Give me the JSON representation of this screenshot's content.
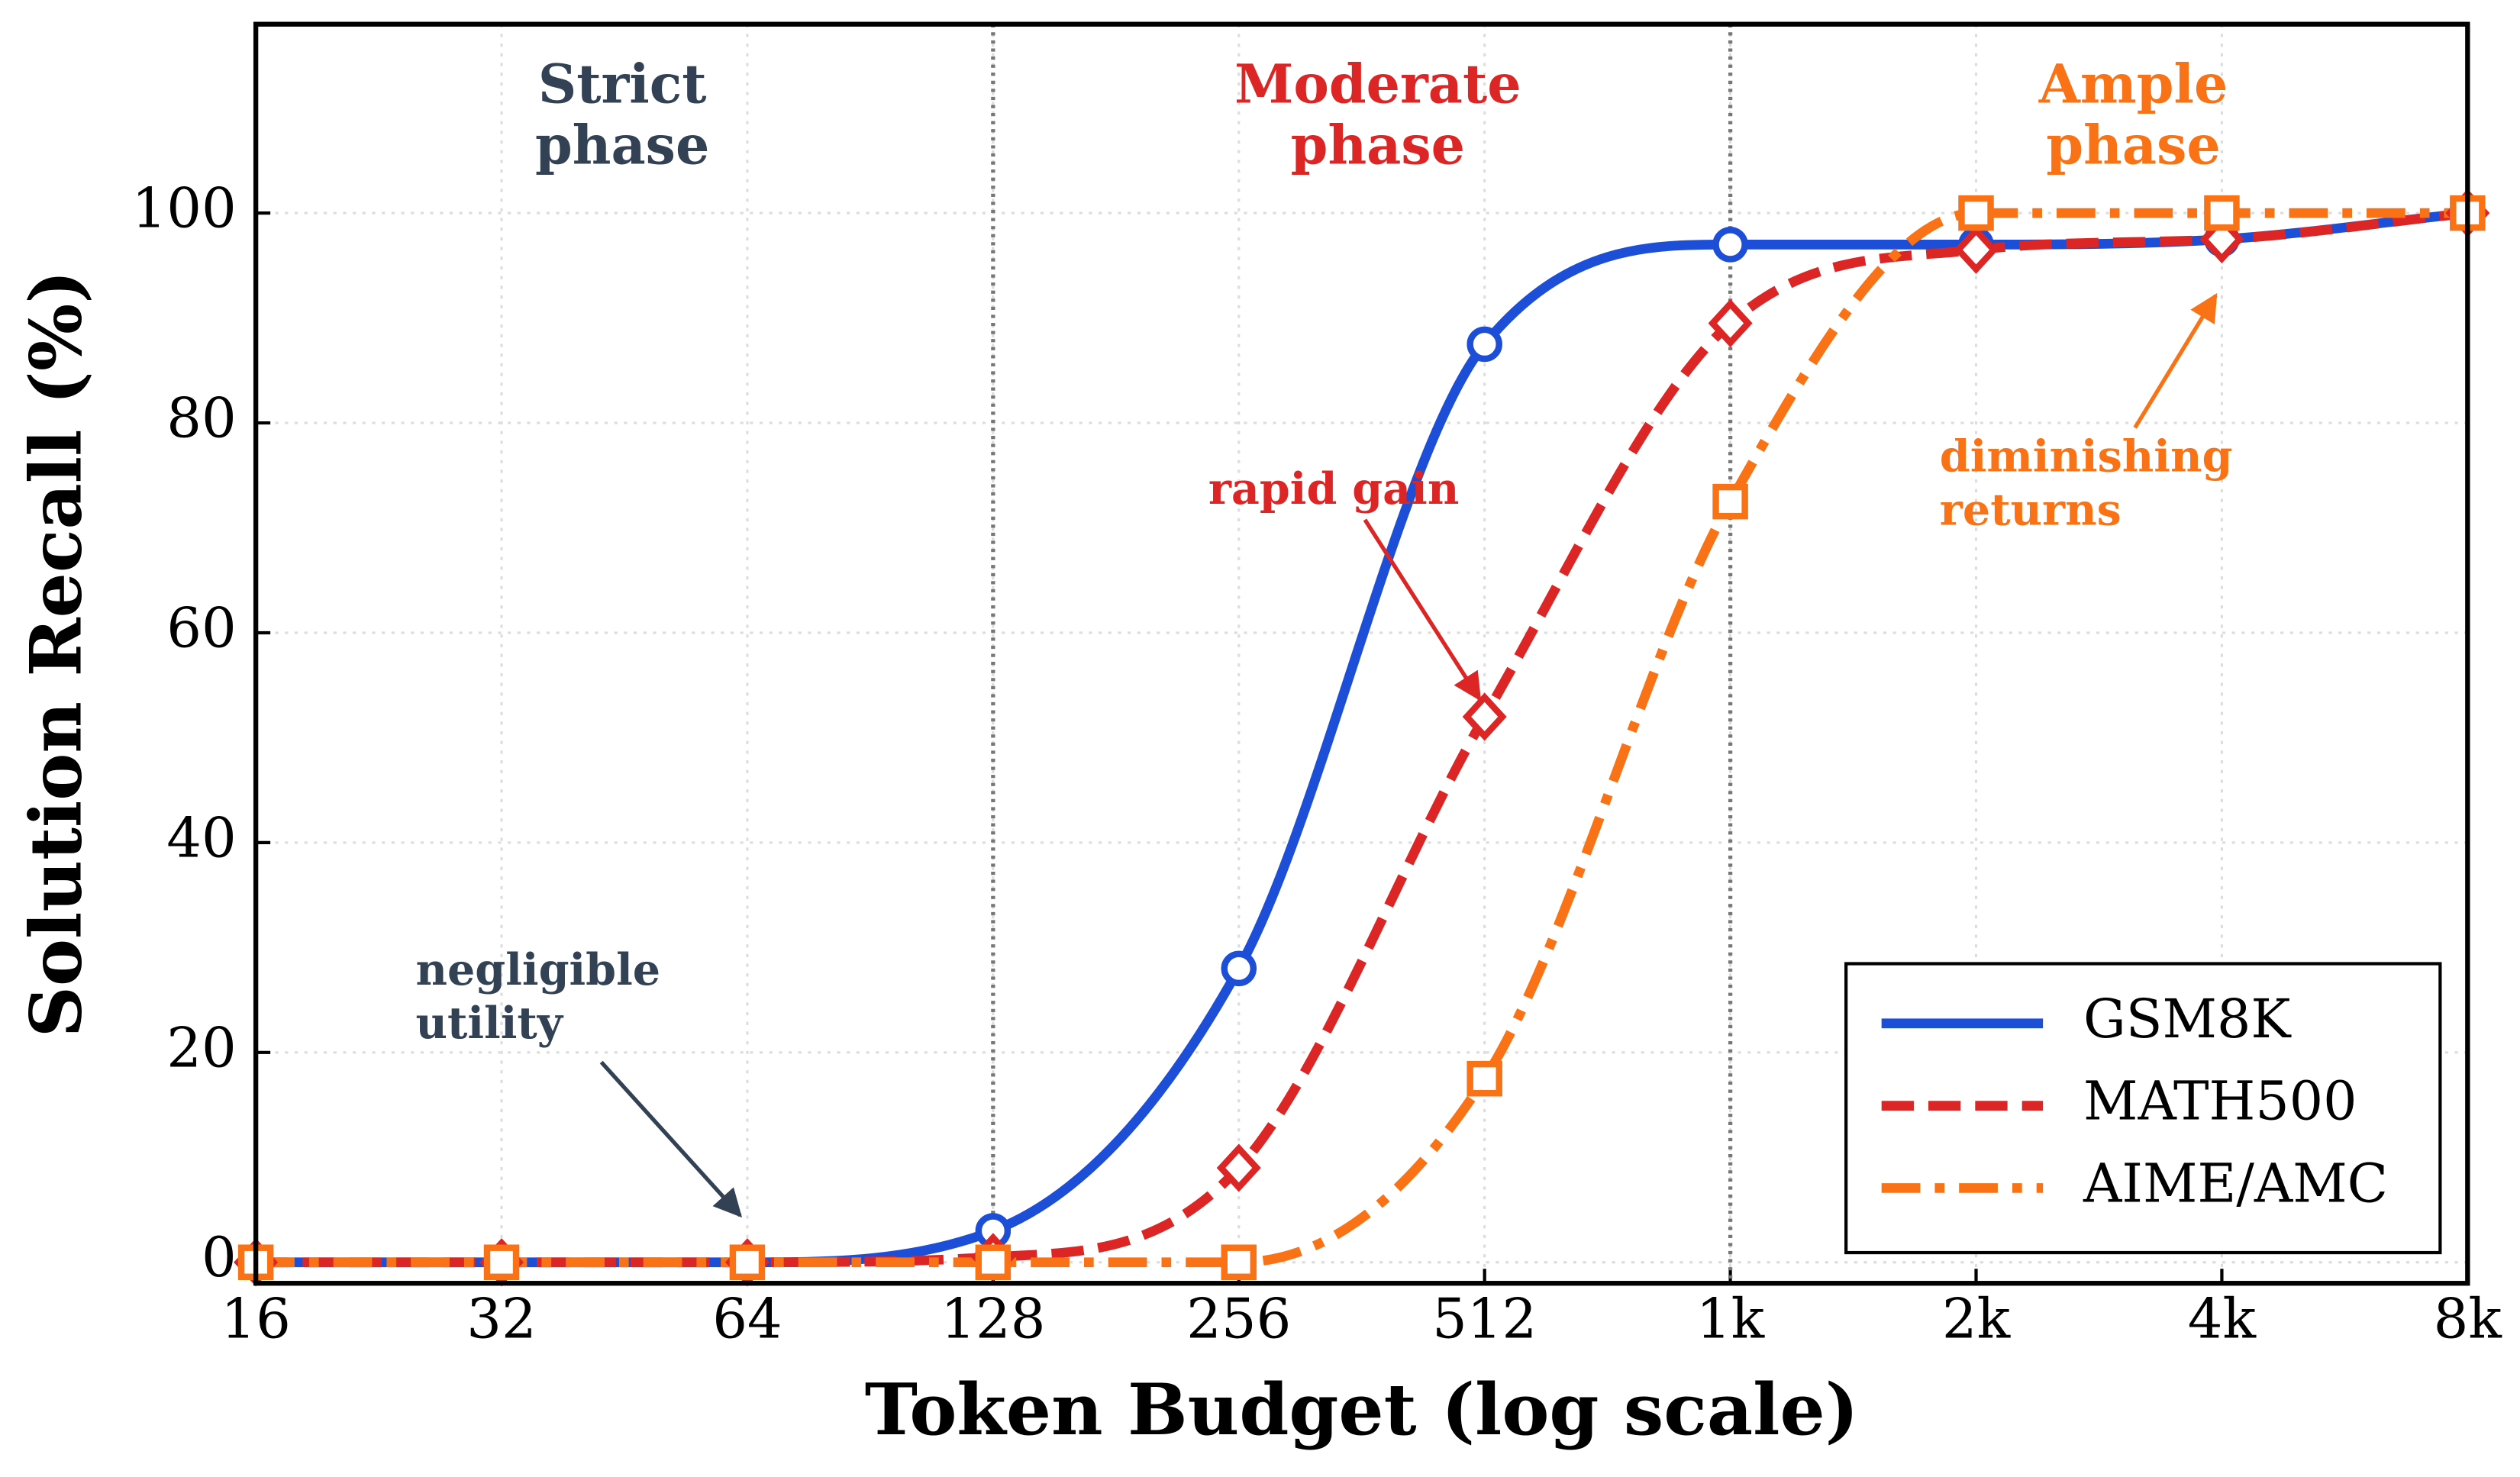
{
  "chart_data": {
    "type": "line",
    "xlabel": "Token Budget (log scale)",
    "ylabel": "Solution Recall (%)",
    "x": [
      16,
      32,
      64,
      128,
      256,
      512,
      1024,
      2048,
      4096,
      8192
    ],
    "xscale": "log",
    "xlim": [
      16,
      8192
    ],
    "xticks": [
      16,
      32,
      64,
      128,
      256,
      512,
      {
        "value": 1024,
        "label": "1k"
      },
      {
        "value": 2048,
        "label": "2k"
      },
      {
        "value": 4096,
        "label": "4k"
      },
      {
        "value": 8192,
        "label": "8k"
      }
    ],
    "ylim": [
      -2,
      118
    ],
    "yticks": [
      0,
      20,
      40,
      60,
      80,
      100
    ],
    "grid": true,
    "legend": "lower right",
    "series": [
      {
        "name": "GSM8K",
        "color": "#1d4ed8",
        "linestyle": "solid",
        "marker": "circle",
        "values": [
          0,
          0,
          0,
          3,
          28,
          87.5,
          97,
          97,
          97.5,
          100
        ]
      },
      {
        "name": "MATH500",
        "color": "#dc2626",
        "linestyle": "dashed",
        "marker": "diamond",
        "values": [
          0,
          0,
          0,
          0.5,
          9,
          52,
          89.5,
          96.5,
          97.5,
          100
        ]
      },
      {
        "name": "AIME/AMC",
        "color": "#f97316",
        "linestyle": "dashdot",
        "marker": "square",
        "values": [
          0,
          0,
          0,
          0,
          0,
          17.5,
          72.5,
          100,
          100,
          100
        ]
      }
    ],
    "phase_boundaries": [
      128,
      1024
    ],
    "phases": [
      {
        "label": [
          "Strict",
          "phase"
        ],
        "color": "#334155"
      },
      {
        "label": [
          "Moderate",
          "phase"
        ],
        "color": "#dc2626"
      },
      {
        "label": [
          "Ample",
          "phase"
        ],
        "color": "#f97316"
      }
    ],
    "annotations": [
      {
        "text": [
          "negligible",
          "utility"
        ],
        "color": "#334155"
      },
      {
        "text": [
          "rapid gain"
        ],
        "color": "#dc2626"
      },
      {
        "text": [
          "diminishing",
          "returns"
        ],
        "color": "#f97316"
      }
    ]
  }
}
